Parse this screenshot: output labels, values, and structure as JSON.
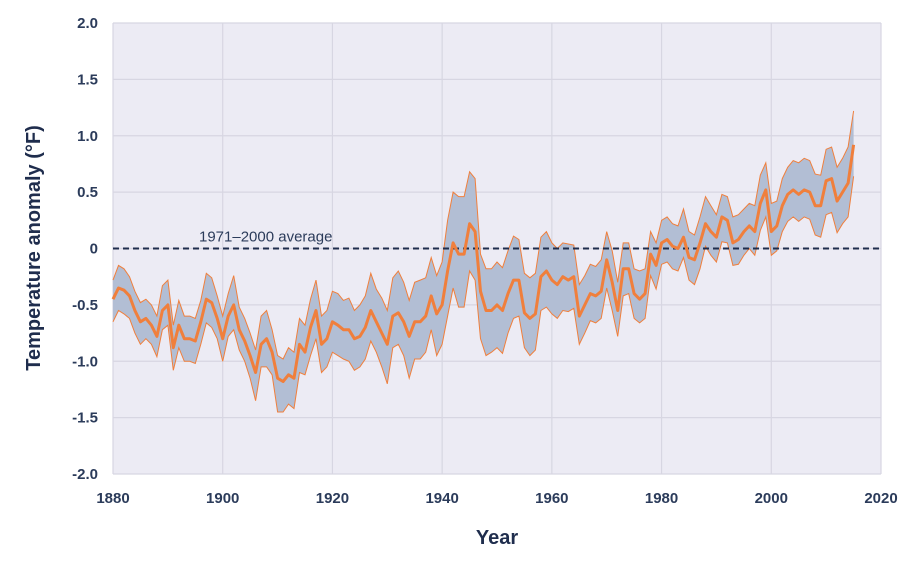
{
  "chart_data": {
    "type": "line",
    "xlabel": "Year",
    "ylabel": "Temperature anomaly (°F)",
    "xlim": [
      1880,
      2020
    ],
    "ylim": [
      -2.0,
      2.0
    ],
    "x_ticks": [
      "1880",
      "1900",
      "1920",
      "1940",
      "1960",
      "1980",
      "2000",
      "2020"
    ],
    "y_ticks": [
      "2.0",
      "1.5",
      "1.0",
      "0.5",
      "0",
      "-0.5",
      "-1.0",
      "-1.5",
      "-2.0"
    ],
    "grid": true,
    "reference_line": {
      "value": 0,
      "label": "1971–2000 average",
      "style": "dashed"
    },
    "colors": {
      "line": "#f07f3c",
      "band": "#b2bed4",
      "plot_background": "#ecebf4",
      "grid": "#d7d6e2",
      "reference": "#1f2d4d",
      "text": "#2b3b5a"
    },
    "x": [
      1880,
      1881,
      1882,
      1883,
      1884,
      1885,
      1886,
      1887,
      1888,
      1889,
      1890,
      1891,
      1892,
      1893,
      1894,
      1895,
      1896,
      1897,
      1898,
      1899,
      1900,
      1901,
      1902,
      1903,
      1904,
      1905,
      1906,
      1907,
      1908,
      1909,
      1910,
      1911,
      1912,
      1913,
      1914,
      1915,
      1916,
      1917,
      1918,
      1919,
      1920,
      1921,
      1922,
      1923,
      1924,
      1925,
      1926,
      1927,
      1928,
      1929,
      1930,
      1931,
      1932,
      1933,
      1934,
      1935,
      1936,
      1937,
      1938,
      1939,
      1940,
      1941,
      1942,
      1943,
      1944,
      1945,
      1946,
      1947,
      1948,
      1949,
      1950,
      1951,
      1952,
      1953,
      1954,
      1955,
      1956,
      1957,
      1958,
      1959,
      1960,
      1961,
      1962,
      1963,
      1964,
      1965,
      1966,
      1967,
      1968,
      1969,
      1970,
      1971,
      1972,
      1973,
      1974,
      1975,
      1976,
      1977,
      1978,
      1979,
      1980,
      1981,
      1982,
      1983,
      1984,
      1985,
      1986,
      1987,
      1988,
      1989,
      1990,
      1991,
      1992,
      1993,
      1994,
      1995,
      1996,
      1997,
      1998,
      1999,
      2000,
      2001,
      2002,
      2003,
      2004,
      2005,
      2006,
      2007,
      2008,
      2009,
      2010,
      2011,
      2012,
      2013,
      2014,
      2015
    ],
    "series": [
      {
        "role": "anomaly",
        "values": [
          -0.45,
          -0.35,
          -0.37,
          -0.42,
          -0.55,
          -0.65,
          -0.62,
          -0.68,
          -0.78,
          -0.55,
          -0.5,
          -0.88,
          -0.68,
          -0.8,
          -0.8,
          -0.82,
          -0.65,
          -0.45,
          -0.48,
          -0.62,
          -0.8,
          -0.6,
          -0.5,
          -0.72,
          -0.82,
          -0.95,
          -1.1,
          -0.85,
          -0.8,
          -0.92,
          -1.15,
          -1.18,
          -1.12,
          -1.15,
          -0.85,
          -0.92,
          -0.7,
          -0.55,
          -0.85,
          -0.8,
          -0.65,
          -0.68,
          -0.72,
          -0.72,
          -0.8,
          -0.78,
          -0.7,
          -0.55,
          -0.65,
          -0.75,
          -0.85,
          -0.6,
          -0.57,
          -0.65,
          -0.78,
          -0.65,
          -0.65,
          -0.6,
          -0.42,
          -0.58,
          -0.5,
          -0.2,
          0.05,
          -0.05,
          -0.05,
          0.22,
          0.15,
          -0.38,
          -0.55,
          -0.55,
          -0.5,
          -0.55,
          -0.4,
          -0.28,
          -0.28,
          -0.57,
          -0.62,
          -0.58,
          -0.25,
          -0.2,
          -0.28,
          -0.32,
          -0.25,
          -0.28,
          -0.25,
          -0.6,
          -0.5,
          -0.4,
          -0.42,
          -0.38,
          -0.1,
          -0.3,
          -0.55,
          -0.18,
          -0.18,
          -0.4,
          -0.45,
          -0.4,
          -0.05,
          -0.15,
          0.05,
          0.08,
          0.02,
          0.0,
          0.1,
          -0.08,
          -0.1,
          0.05,
          0.22,
          0.15,
          0.1,
          0.28,
          0.25,
          0.05,
          0.08,
          0.15,
          0.2,
          0.15,
          0.4,
          0.52,
          0.15,
          0.2,
          0.38,
          0.48,
          0.52,
          0.48,
          0.52,
          0.5,
          0.38,
          0.38,
          0.6,
          0.62,
          0.42,
          0.5,
          0.58,
          0.92
        ]
      },
      {
        "role": "upper bound",
        "values": [
          -0.28,
          -0.15,
          -0.18,
          -0.25,
          -0.38,
          -0.48,
          -0.45,
          -0.5,
          -0.6,
          -0.33,
          -0.28,
          -0.68,
          -0.46,
          -0.6,
          -0.6,
          -0.62,
          -0.46,
          -0.22,
          -0.26,
          -0.42,
          -0.6,
          -0.4,
          -0.24,
          -0.52,
          -0.62,
          -0.75,
          -0.9,
          -0.6,
          -0.55,
          -0.72,
          -0.95,
          -0.98,
          -0.88,
          -0.92,
          -0.62,
          -0.68,
          -0.45,
          -0.28,
          -0.6,
          -0.55,
          -0.38,
          -0.4,
          -0.46,
          -0.44,
          -0.55,
          -0.5,
          -0.42,
          -0.22,
          -0.36,
          -0.44,
          -0.55,
          -0.26,
          -0.2,
          -0.3,
          -0.46,
          -0.3,
          -0.28,
          -0.26,
          -0.08,
          -0.24,
          -0.12,
          0.25,
          0.5,
          0.46,
          0.46,
          0.68,
          0.62,
          -0.05,
          -0.18,
          -0.18,
          -0.12,
          -0.17,
          -0.02,
          0.11,
          0.08,
          -0.22,
          -0.26,
          -0.22,
          0.1,
          0.15,
          0.05,
          0.0,
          0.05,
          0.04,
          0.03,
          -0.32,
          -0.24,
          -0.14,
          -0.16,
          -0.1,
          0.15,
          -0.02,
          -0.3,
          0.05,
          0.05,
          -0.18,
          -0.2,
          -0.18,
          0.15,
          0.05,
          0.25,
          0.28,
          0.22,
          0.2,
          0.35,
          0.15,
          0.12,
          0.28,
          0.46,
          0.38,
          0.3,
          0.48,
          0.46,
          0.28,
          0.3,
          0.35,
          0.4,
          0.38,
          0.65,
          0.76,
          0.4,
          0.42,
          0.62,
          0.72,
          0.78,
          0.76,
          0.8,
          0.78,
          0.66,
          0.65,
          0.88,
          0.9,
          0.72,
          0.8,
          0.9,
          1.22
        ]
      },
      {
        "role": "lower bound",
        "values": [
          -0.65,
          -0.55,
          -0.58,
          -0.62,
          -0.75,
          -0.85,
          -0.8,
          -0.85,
          -0.96,
          -0.72,
          -0.68,
          -1.08,
          -0.88,
          -1.0,
          -1.0,
          -1.02,
          -0.85,
          -0.66,
          -0.7,
          -0.8,
          -1.0,
          -0.78,
          -0.72,
          -0.9,
          -1.0,
          -1.15,
          -1.35,
          -1.05,
          -1.05,
          -1.12,
          -1.45,
          -1.45,
          -1.38,
          -1.42,
          -1.1,
          -1.12,
          -0.95,
          -0.8,
          -1.1,
          -1.05,
          -0.92,
          -0.95,
          -0.98,
          -1.0,
          -1.08,
          -1.05,
          -0.98,
          -0.82,
          -0.92,
          -1.05,
          -1.2,
          -0.88,
          -0.85,
          -0.95,
          -1.15,
          -0.98,
          -0.98,
          -0.92,
          -0.72,
          -0.95,
          -0.85,
          -0.6,
          -0.35,
          -0.52,
          -0.52,
          -0.2,
          -0.28,
          -0.8,
          -0.95,
          -0.92,
          -0.88,
          -0.93,
          -0.75,
          -0.62,
          -0.6,
          -0.88,
          -0.95,
          -0.9,
          -0.55,
          -0.52,
          -0.58,
          -0.62,
          -0.55,
          -0.56,
          -0.53,
          -0.85,
          -0.75,
          -0.64,
          -0.66,
          -0.62,
          -0.35,
          -0.55,
          -0.78,
          -0.42,
          -0.4,
          -0.62,
          -0.66,
          -0.62,
          -0.24,
          -0.36,
          -0.14,
          -0.12,
          -0.18,
          -0.2,
          -0.08,
          -0.28,
          -0.32,
          -0.18,
          0.02,
          -0.06,
          -0.12,
          0.06,
          0.05,
          -0.15,
          -0.14,
          -0.06,
          0.0,
          -0.06,
          0.16,
          0.28,
          -0.06,
          -0.02,
          0.15,
          0.24,
          0.28,
          0.24,
          0.28,
          0.26,
          0.12,
          0.1,
          0.3,
          0.32,
          0.14,
          0.22,
          0.28,
          0.64
        ]
      }
    ]
  }
}
